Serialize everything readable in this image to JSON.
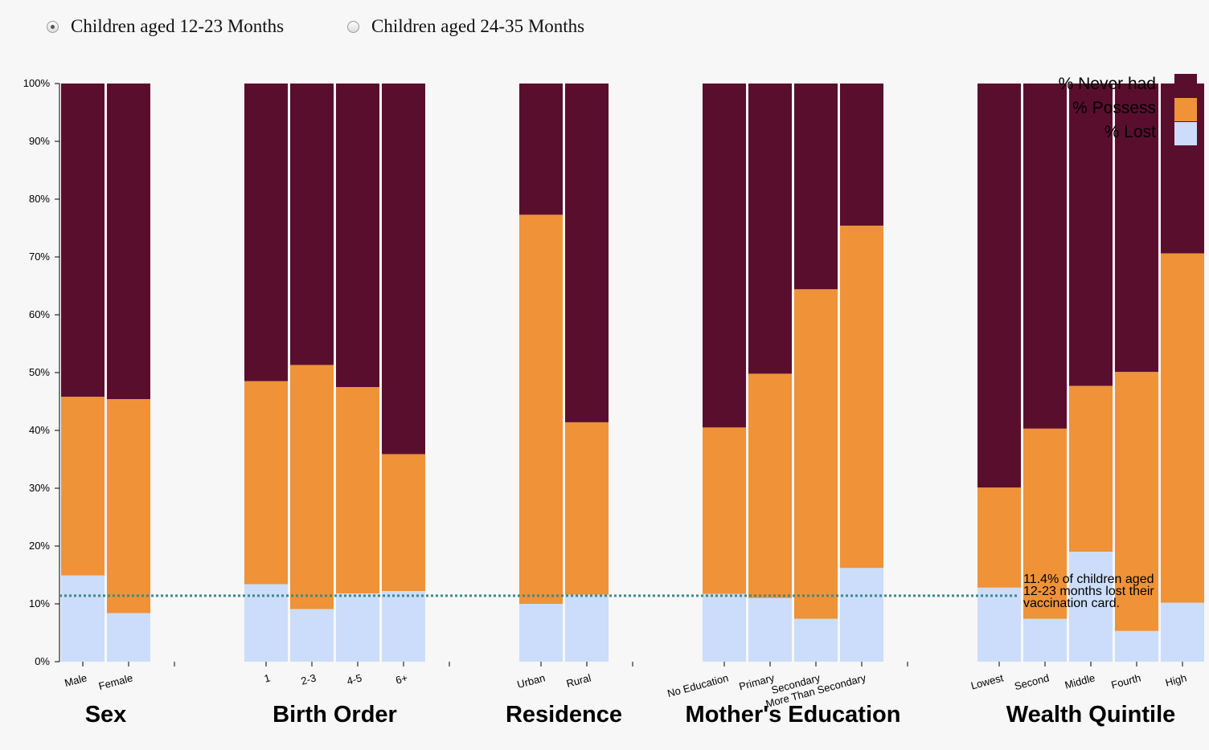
{
  "controls": {
    "options": [
      {
        "label": "Children aged 12-23 Months",
        "checked": true
      },
      {
        "label": "Children aged 24-35 Months",
        "checked": false
      }
    ]
  },
  "chart_data": {
    "type": "bar",
    "stacked": true,
    "y_ticks": [
      "0%",
      "10%",
      "20%",
      "30%",
      "40%",
      "50%",
      "60%",
      "70%",
      "80%",
      "90%",
      "100%"
    ],
    "ylim": [
      0,
      100
    ],
    "colors": {
      "never": "#5a0e2e",
      "possess": "#f09237",
      "lost": "#cbddfa"
    },
    "legend": [
      {
        "label": "% Never had",
        "key": "never"
      },
      {
        "label": "% Possess",
        "key": "possess"
      },
      {
        "label": "% Lost",
        "key": "lost"
      }
    ],
    "groups": [
      {
        "name": "Sex",
        "categories": [
          {
            "label": "Male",
            "lost": 14.9,
            "possess": 30.9,
            "never": 54.2
          },
          {
            "label": "Female",
            "lost": 8.4,
            "possess": 37.0,
            "never": 54.6
          }
        ]
      },
      {
        "name": "Birth Order",
        "categories": [
          {
            "label": "1",
            "lost": 13.4,
            "possess": 35.1,
            "never": 51.5
          },
          {
            "label": "2-3",
            "lost": 9.1,
            "possess": 42.2,
            "never": 48.7
          },
          {
            "label": "4-5",
            "lost": 11.8,
            "possess": 35.7,
            "never": 52.5
          },
          {
            "label": "6+",
            "lost": 12.2,
            "possess": 23.7,
            "never": 64.1
          }
        ]
      },
      {
        "name": "Residence",
        "categories": [
          {
            "label": "Urban",
            "lost": 10.0,
            "possess": 67.3,
            "never": 22.7
          },
          {
            "label": "Rural",
            "lost": 11.6,
            "possess": 29.8,
            "never": 58.6
          }
        ]
      },
      {
        "name": "Mother's Education",
        "categories": [
          {
            "label": "No Education",
            "lost": 11.7,
            "possess": 28.8,
            "never": 59.5
          },
          {
            "label": "Primary",
            "lost": 11.0,
            "possess": 38.8,
            "never": 50.2
          },
          {
            "label": "Secondary",
            "lost": 7.4,
            "possess": 57.0,
            "never": 35.6
          },
          {
            "label": "More Than Secondary",
            "lost": 16.2,
            "possess": 59.2,
            "never": 24.6
          }
        ]
      },
      {
        "name": "Wealth Quintile",
        "categories": [
          {
            "label": "Lowest",
            "lost": 12.8,
            "possess": 17.3,
            "never": 69.9
          },
          {
            "label": "Second",
            "lost": 7.4,
            "possess": 32.9,
            "never": 59.7
          },
          {
            "label": "Middle",
            "lost": 19.0,
            "possess": 28.7,
            "never": 52.3
          },
          {
            "label": "Fourth",
            "lost": 5.3,
            "possess": 44.8,
            "never": 49.9
          },
          {
            "label": "High",
            "lost": 10.2,
            "possess": 60.4,
            "never": 29.4
          }
        ]
      }
    ],
    "reference_line": {
      "value": 11.4,
      "color": "#3a8a8a",
      "annotation": [
        "11.4% of children aged",
        "12-23 months lost their",
        "vaccination card."
      ]
    }
  }
}
